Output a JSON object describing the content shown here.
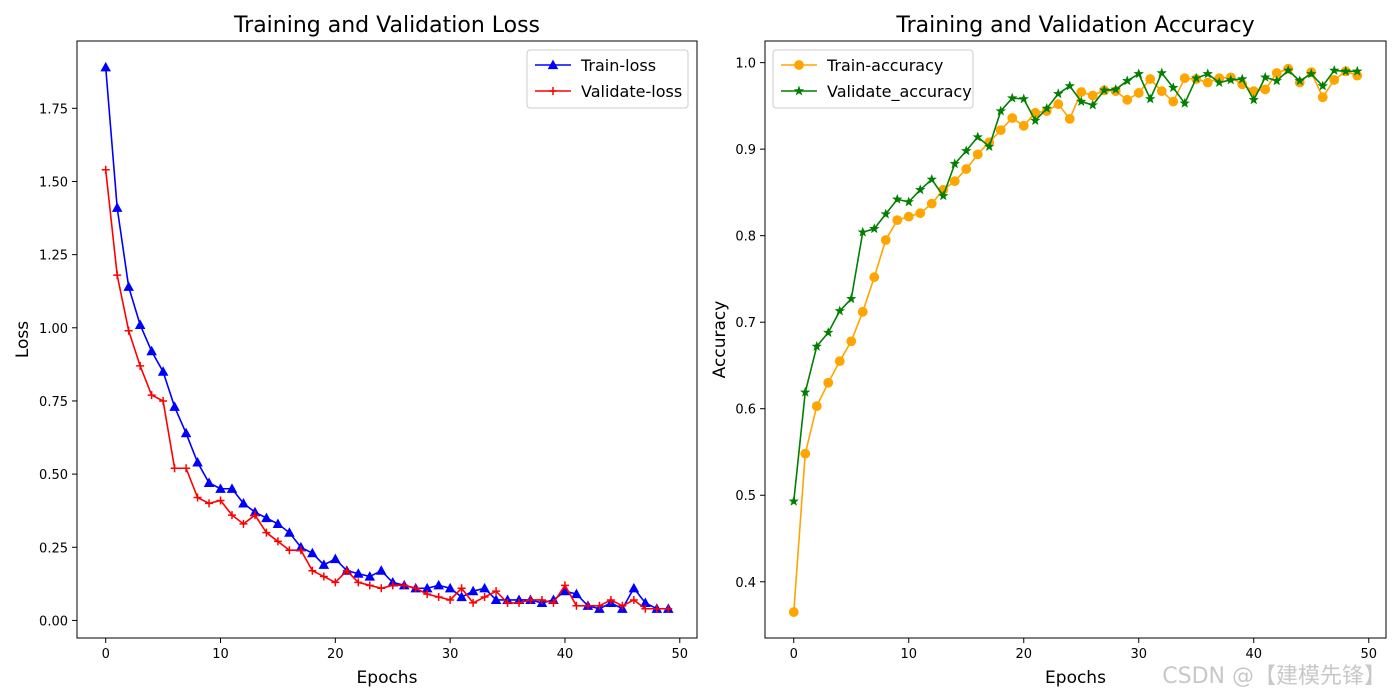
{
  "chart_data": [
    {
      "type": "line",
      "title": "Training and Validation Loss",
      "xlabel": "Epochs",
      "ylabel": "Loss",
      "xlim": [
        -2.5,
        51.5
      ],
      "ylim": [
        -0.06,
        1.98
      ],
      "xticks": [
        0,
        10,
        20,
        30,
        40,
        50
      ],
      "yticks": [
        0.0,
        0.25,
        0.5,
        0.75,
        1.0,
        1.25,
        1.5,
        1.75
      ],
      "ytick_labels": [
        "0.00",
        "0.25",
        "0.50",
        "0.75",
        "1.00",
        "1.25",
        "1.50",
        "1.75"
      ],
      "legend_position": "top-right",
      "x": [
        0,
        1,
        2,
        3,
        4,
        5,
        6,
        7,
        8,
        9,
        10,
        11,
        12,
        13,
        14,
        15,
        16,
        17,
        18,
        19,
        20,
        21,
        22,
        23,
        24,
        25,
        26,
        27,
        28,
        29,
        30,
        31,
        32,
        33,
        34,
        35,
        36,
        37,
        38,
        39,
        40,
        41,
        42,
        43,
        44,
        45,
        46,
        47,
        48,
        49
      ],
      "series": [
        {
          "name": "Train-loss",
          "color": "#0000ff",
          "marker": "triangle",
          "values": [
            1.89,
            1.41,
            1.14,
            1.01,
            0.92,
            0.85,
            0.73,
            0.64,
            0.54,
            0.47,
            0.45,
            0.45,
            0.4,
            0.37,
            0.35,
            0.33,
            0.3,
            0.25,
            0.23,
            0.19,
            0.21,
            0.17,
            0.16,
            0.15,
            0.17,
            0.13,
            0.12,
            0.11,
            0.11,
            0.12,
            0.11,
            0.08,
            0.1,
            0.11,
            0.07,
            0.07,
            0.07,
            0.07,
            0.06,
            0.07,
            0.1,
            0.09,
            0.05,
            0.04,
            0.06,
            0.04,
            0.11,
            0.06,
            0.04,
            0.04
          ]
        },
        {
          "name": "Validate-loss",
          "color": "#ff0000",
          "marker": "plus",
          "values": [
            1.54,
            1.18,
            0.99,
            0.87,
            0.77,
            0.75,
            0.52,
            0.52,
            0.42,
            0.4,
            0.41,
            0.36,
            0.33,
            0.36,
            0.3,
            0.27,
            0.24,
            0.24,
            0.17,
            0.15,
            0.13,
            0.17,
            0.13,
            0.12,
            0.11,
            0.12,
            0.12,
            0.11,
            0.09,
            0.08,
            0.07,
            0.11,
            0.06,
            0.08,
            0.1,
            0.06,
            0.06,
            0.07,
            0.07,
            0.06,
            0.12,
            0.05,
            0.05,
            0.05,
            0.07,
            0.05,
            0.07,
            0.04,
            0.04,
            0.04
          ]
        }
      ]
    },
    {
      "type": "line",
      "title": "Training and Validation Accuracy",
      "xlabel": "Epochs",
      "ylabel": "Accuracy",
      "xlim": [
        -2.5,
        51.5
      ],
      "ylim": [
        0.335,
        1.025
      ],
      "xticks": [
        0,
        10,
        20,
        30,
        40,
        50
      ],
      "yticks": [
        0.4,
        0.5,
        0.6,
        0.7,
        0.8,
        0.9,
        1.0
      ],
      "ytick_labels": [
        "0.4",
        "0.5",
        "0.6",
        "0.7",
        "0.8",
        "0.9",
        "1.0"
      ],
      "legend_position": "top-left",
      "x": [
        0,
        1,
        2,
        3,
        4,
        5,
        6,
        7,
        8,
        9,
        10,
        11,
        12,
        13,
        14,
        15,
        16,
        17,
        18,
        19,
        20,
        21,
        22,
        23,
        24,
        25,
        26,
        27,
        28,
        29,
        30,
        31,
        32,
        33,
        34,
        35,
        36,
        37,
        38,
        39,
        40,
        41,
        42,
        43,
        44,
        45,
        46,
        47,
        48,
        49
      ],
      "series": [
        {
          "name": "Train-accuracy",
          "color": "#ffa500",
          "marker": "circle",
          "values": [
            0.365,
            0.548,
            0.603,
            0.63,
            0.655,
            0.678,
            0.712,
            0.752,
            0.795,
            0.818,
            0.822,
            0.826,
            0.837,
            0.853,
            0.863,
            0.877,
            0.894,
            0.908,
            0.922,
            0.936,
            0.927,
            0.942,
            0.944,
            0.952,
            0.935,
            0.966,
            0.962,
            0.968,
            0.967,
            0.957,
            0.965,
            0.981,
            0.967,
            0.955,
            0.982,
            0.981,
            0.977,
            0.982,
            0.983,
            0.975,
            0.967,
            0.969,
            0.988,
            0.993,
            0.977,
            0.989,
            0.96,
            0.98,
            0.99,
            0.985
          ]
        },
        {
          "name": "Validate_accuracy",
          "color": "#008000",
          "marker": "star",
          "values": [
            0.493,
            0.619,
            0.672,
            0.688,
            0.713,
            0.727,
            0.804,
            0.808,
            0.825,
            0.842,
            0.839,
            0.853,
            0.865,
            0.846,
            0.883,
            0.898,
            0.914,
            0.903,
            0.944,
            0.959,
            0.958,
            0.933,
            0.947,
            0.964,
            0.973,
            0.955,
            0.951,
            0.968,
            0.969,
            0.979,
            0.987,
            0.958,
            0.988,
            0.971,
            0.953,
            0.982,
            0.987,
            0.977,
            0.98,
            0.981,
            0.957,
            0.983,
            0.979,
            0.991,
            0.979,
            0.987,
            0.973,
            0.991,
            0.99,
            0.99
          ]
        }
      ]
    }
  ],
  "watermark": "CSDN @【建模先锋】"
}
